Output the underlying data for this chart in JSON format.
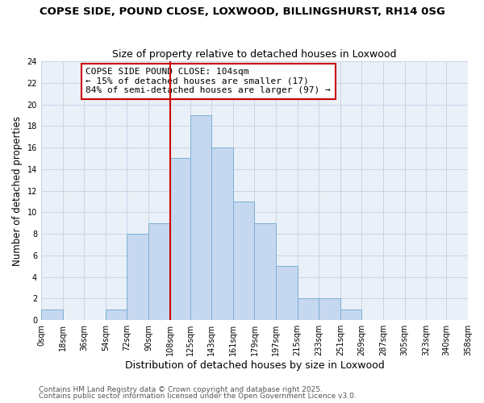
{
  "title": "COPSE SIDE, POUND CLOSE, LOXWOOD, BILLINGSHURST, RH14 0SG",
  "subtitle": "Size of property relative to detached houses in Loxwood",
  "xlabel": "Distribution of detached houses by size in Loxwood",
  "ylabel": "Number of detached properties",
  "bin_edges": [
    0,
    18,
    36,
    54,
    72,
    90,
    108,
    125,
    143,
    161,
    179,
    197,
    215,
    233,
    251,
    269,
    287,
    305,
    323,
    340,
    358
  ],
  "counts": [
    1,
    0,
    0,
    1,
    8,
    9,
    15,
    19,
    16,
    11,
    9,
    5,
    2,
    2,
    1,
    0,
    0,
    0,
    0,
    0
  ],
  "bar_color": "#c5d8f0",
  "bar_edge_color": "#7bafd4",
  "vline_x": 108,
  "vline_color": "#cc0000",
  "annotation_box_text": "COPSE SIDE POUND CLOSE: 104sqm\n← 15% of detached houses are smaller (17)\n84% of semi-detached houses are larger (97) →",
  "annotation_box_facecolor": "white",
  "annotation_box_edgecolor": "#cc0000",
  "ylim": [
    0,
    24
  ],
  "yticks": [
    0,
    2,
    4,
    6,
    8,
    10,
    12,
    14,
    16,
    18,
    20,
    22,
    24
  ],
  "xlim": [
    0,
    358
  ],
  "tick_labels": [
    "0sqm",
    "18sqm",
    "36sqm",
    "54sqm",
    "72sqm",
    "90sqm",
    "108sqm",
    "125sqm",
    "143sqm",
    "161sqm",
    "179sqm",
    "197sqm",
    "215sqm",
    "233sqm",
    "251sqm",
    "269sqm",
    "287sqm",
    "305sqm",
    "323sqm",
    "340sqm",
    "358sqm"
  ],
  "footer1": "Contains HM Land Registry data © Crown copyright and database right 2025.",
  "footer2": "Contains public sector information licensed under the Open Government Licence v3.0.",
  "title_fontsize": 9.5,
  "subtitle_fontsize": 9,
  "xlabel_fontsize": 9,
  "ylabel_fontsize": 8.5,
  "tick_fontsize": 7,
  "annotation_fontsize": 8,
  "footer_fontsize": 6.5
}
